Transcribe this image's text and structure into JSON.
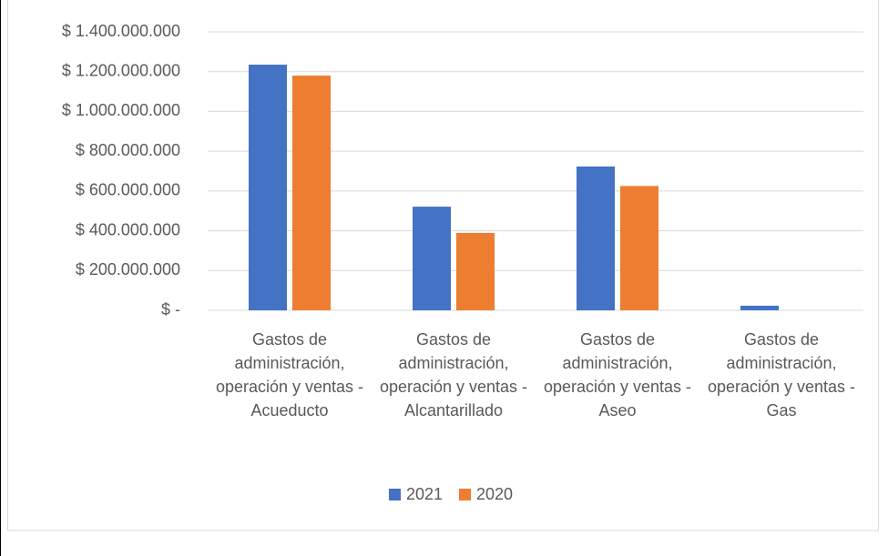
{
  "chart_data": {
    "type": "bar",
    "categories": [
      "Gastos de administración, operación y ventas - Acueducto",
      "Gastos de administración, operación y ventas - Alcantarillado",
      "Gastos de administración, operación y ventas - Aseo",
      "Gastos de administración, operación y ventas - Gas"
    ],
    "series": [
      {
        "name": "2021",
        "color": "#4472c4",
        "values": [
          1235000000,
          521000000,
          723000000,
          23000000
        ]
      },
      {
        "name": "2020",
        "color": "#ed7d31",
        "values": [
          1180000000,
          389000000,
          625000000,
          0
        ]
      }
    ],
    "ylim": [
      0,
      1400000000
    ],
    "yticks": [
      {
        "value": 0,
        "label": "$ -"
      },
      {
        "value": 200000000,
        "label": "$ 200.000.000"
      },
      {
        "value": 400000000,
        "label": "$ 400.000.000"
      },
      {
        "value": 600000000,
        "label": "$ 600.000.000"
      },
      {
        "value": 800000000,
        "label": "$ 800.000.000"
      },
      {
        "value": 1000000000,
        "label": "$ 1.000.000.000"
      },
      {
        "value": 1200000000,
        "label": "$ 1.200.000.000"
      },
      {
        "value": 1400000000,
        "label": "$ 1.400.000.000"
      }
    ],
    "grid": true,
    "legend": "bottom"
  }
}
